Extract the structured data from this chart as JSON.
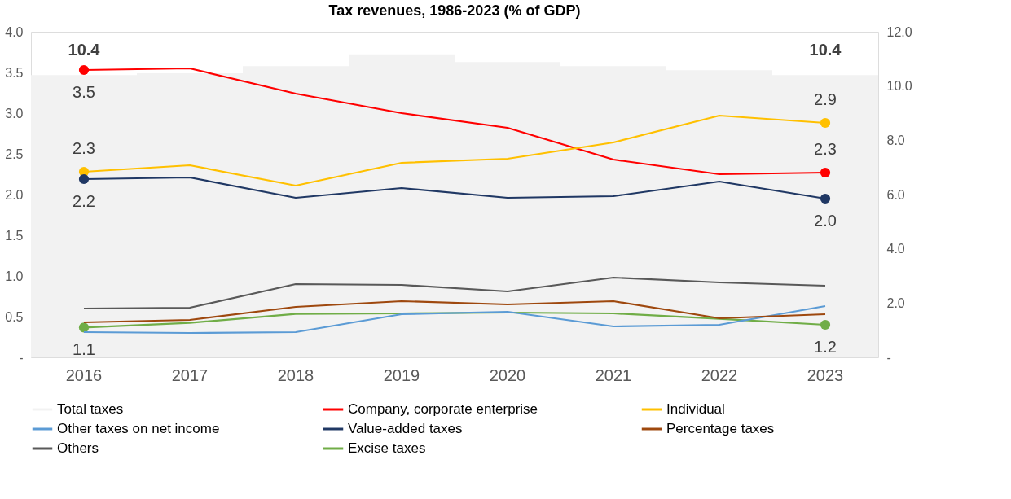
{
  "chart_data": {
    "type": "line",
    "title": "Tax revenues, 1986-2023 (% of GDP)",
    "categories": [
      "2016",
      "2017",
      "2018",
      "2019",
      "2020",
      "2021",
      "2022",
      "2023"
    ],
    "series": [
      {
        "name": "Total taxes",
        "type": "bar",
        "axis": "y2",
        "color": "#f2f2f2",
        "values": [
          10.4,
          10.47,
          10.73,
          11.17,
          10.88,
          10.73,
          10.58,
          10.4
        ],
        "value_labels": [
          "10.4",
          null,
          null,
          null,
          null,
          null,
          null,
          "10.4"
        ]
      },
      {
        "name": "Company, corporate enterprise",
        "color": "#ff0000",
        "values": [
          3.53,
          3.55,
          3.24,
          3.0,
          2.82,
          2.43,
          2.25,
          2.27
        ],
        "value_labels": [
          "3.5",
          null,
          null,
          null,
          null,
          null,
          null,
          "2.3"
        ]
      },
      {
        "name": "Individual",
        "color": "#ffc000",
        "values": [
          2.28,
          2.36,
          2.11,
          2.39,
          2.44,
          2.64,
          2.97,
          2.88
        ],
        "value_labels": [
          "2.3",
          null,
          null,
          null,
          null,
          null,
          null,
          "2.9"
        ]
      },
      {
        "name": "Other taxes on net income",
        "color": "#5b9bd5",
        "values": [
          0.31,
          0.3,
          0.31,
          0.53,
          0.56,
          0.38,
          0.4,
          0.63
        ]
      },
      {
        "name": "Value-added taxes",
        "color": "#203864",
        "values": [
          2.19,
          2.21,
          1.96,
          2.08,
          1.96,
          1.98,
          2.16,
          1.95
        ],
        "value_labels": [
          "2.2",
          null,
          null,
          null,
          null,
          null,
          null,
          "2.0"
        ]
      },
      {
        "name": "Percentage taxes",
        "color": "#9e480e",
        "values": [
          0.43,
          0.46,
          0.62,
          0.69,
          0.65,
          0.69,
          0.48,
          0.53
        ]
      },
      {
        "name": "Others",
        "color": "#595959",
        "values": [
          0.6,
          0.61,
          0.9,
          0.89,
          0.81,
          0.98,
          0.92,
          0.88
        ]
      },
      {
        "name": "Excise taxes",
        "axis": "y2",
        "color": "#70ad47",
        "values": [
          1.1,
          1.27,
          1.6,
          1.62,
          1.65,
          1.62,
          1.42,
          1.2
        ],
        "value_labels": [
          "1.1",
          null,
          null,
          null,
          null,
          null,
          null,
          "1.2"
        ]
      }
    ],
    "ylim": [
      0,
      4
    ],
    "yticks": [
      {
        "value": 0,
        "label": "-"
      },
      0.5,
      {
        "value": 1,
        "label": "1.0"
      },
      1.5,
      {
        "value": 2,
        "label": "2.0"
      },
      2.5,
      {
        "value": 3,
        "label": "3.0"
      },
      3.5,
      {
        "value": 4,
        "label": "4.0"
      }
    ],
    "y2lim": [
      0,
      12
    ],
    "y2ticks": [
      {
        "value": 0,
        "label": "-"
      },
      {
        "value": 2,
        "label": "2.0"
      },
      {
        "value": 4,
        "label": "4.0"
      },
      {
        "value": 6,
        "label": "6.0"
      },
      {
        "value": 8,
        "label": "8.0"
      },
      {
        "value": 10,
        "label": "10.0"
      },
      {
        "value": 12,
        "label": "12.0"
      }
    ],
    "legend": "bottom",
    "grid": false,
    "line_style": "solid"
  }
}
